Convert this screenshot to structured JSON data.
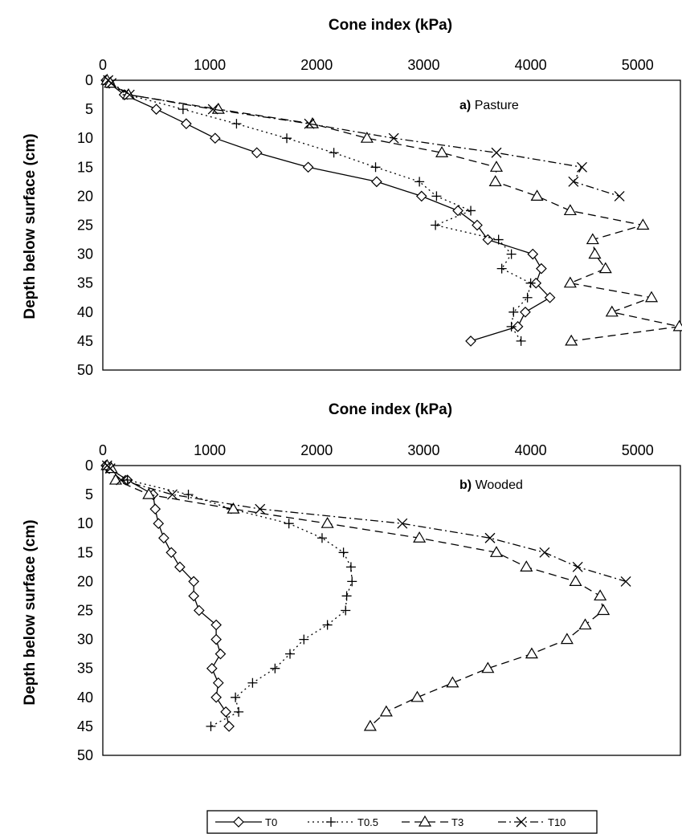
{
  "legend": [
    "T0",
    "T0.5",
    "T3",
    "T10"
  ],
  "chart_data": [
    {
      "type": "line",
      "panel_tag": "a)",
      "panel_name": "Pasture",
      "xlabel": "Cone index (kPa)",
      "ylabel": "Depth below surface (cm)",
      "xlim": [
        0,
        5400
      ],
      "ylim": [
        0,
        50
      ],
      "x_ticks": [
        0,
        1000,
        2000,
        3000,
        4000,
        5000
      ],
      "y_ticks": [
        0,
        5,
        10,
        15,
        20,
        25,
        30,
        35,
        40,
        45,
        50
      ],
      "legend_position": "bottom",
      "series": [
        {
          "name": "T0",
          "points": [
            [
              30,
              0
            ],
            [
              60,
              0.5
            ],
            [
              200,
              2.5
            ],
            [
              500,
              5
            ],
            [
              780,
              7.5
            ],
            [
              1050,
              10
            ],
            [
              1440,
              12.5
            ],
            [
              1920,
              15
            ],
            [
              2560,
              17.5
            ],
            [
              2980,
              20
            ],
            [
              3320,
              22.5
            ],
            [
              3500,
              25
            ],
            [
              3600,
              27.5
            ],
            [
              4020,
              30
            ],
            [
              4100,
              32.5
            ],
            [
              4050,
              35
            ],
            [
              4180,
              37.5
            ],
            [
              3950,
              40
            ],
            [
              3880,
              42.5
            ],
            [
              3440,
              45
            ]
          ]
        },
        {
          "name": "T0.5",
          "points": [
            [
              40,
              0
            ],
            [
              60,
              0.5
            ],
            [
              230,
              2.5
            ],
            [
              750,
              5
            ],
            [
              1250,
              7.5
            ],
            [
              1720,
              10
            ],
            [
              2160,
              12.5
            ],
            [
              2550,
              15
            ],
            [
              2960,
              17.5
            ],
            [
              3120,
              20
            ],
            [
              3440,
              22.5
            ],
            [
              3110,
              25
            ],
            [
              3700,
              27.5
            ],
            [
              3820,
              30
            ],
            [
              3730,
              32.5
            ],
            [
              4000,
              35
            ],
            [
              3970,
              37.5
            ],
            [
              3840,
              40
            ],
            [
              3820,
              42.5
            ],
            [
              3910,
              45
            ]
          ]
        },
        {
          "name": "T3",
          "points": [
            [
              40,
              0
            ],
            [
              70,
              0.5
            ],
            [
              240,
              2.5
            ],
            [
              1080,
              5
            ],
            [
              1960,
              7.5
            ],
            [
              2470,
              10
            ],
            [
              3170,
              12.5
            ],
            [
              3680,
              15
            ],
            [
              3670,
              17.5
            ],
            [
              4060,
              20
            ],
            [
              4370,
              22.5
            ],
            [
              5050,
              25
            ],
            [
              4580,
              27.5
            ],
            [
              4600,
              30
            ],
            [
              4700,
              32.5
            ],
            [
              4370,
              35
            ],
            [
              5130,
              37.5
            ],
            [
              4760,
              40
            ],
            [
              5390,
              42.5
            ],
            [
              4380,
              45
            ]
          ]
        },
        {
          "name": "T10",
          "points": [
            [
              50,
              0
            ],
            [
              80,
              0.5
            ],
            [
              250,
              2.5
            ],
            [
              1030,
              5
            ],
            [
              1930,
              7.5
            ],
            [
              2720,
              10
            ],
            [
              3680,
              12.5
            ],
            [
              4480,
              15
            ],
            [
              4400,
              17.5
            ],
            [
              4830,
              20
            ]
          ]
        }
      ]
    },
    {
      "type": "line",
      "panel_tag": "b)",
      "panel_name": "Wooded",
      "xlabel": "Cone index (kPa)",
      "ylabel": "Depth below surface (cm)",
      "xlim": [
        0,
        5400
      ],
      "ylim": [
        0,
        50
      ],
      "x_ticks": [
        0,
        1000,
        2000,
        3000,
        4000,
        5000
      ],
      "y_ticks": [
        0,
        5,
        10,
        15,
        20,
        25,
        30,
        35,
        40,
        45,
        50
      ],
      "legend_position": "bottom",
      "series": [
        {
          "name": "T0",
          "points": [
            [
              30,
              0
            ],
            [
              60,
              0.5
            ],
            [
              230,
              2.5
            ],
            [
              470,
              5
            ],
            [
              490,
              7.5
            ],
            [
              520,
              10
            ],
            [
              570,
              12.5
            ],
            [
              640,
              15
            ],
            [
              720,
              17.5
            ],
            [
              850,
              20
            ],
            [
              850,
              22.5
            ],
            [
              900,
              25
            ],
            [
              1060,
              27.5
            ],
            [
              1060,
              30
            ],
            [
              1100,
              32.5
            ],
            [
              1020,
              35
            ],
            [
              1080,
              37.5
            ],
            [
              1060,
              40
            ],
            [
              1150,
              42.5
            ],
            [
              1180,
              45
            ]
          ]
        },
        {
          "name": "T0.5",
          "points": [
            [
              30,
              0
            ],
            [
              60,
              0.5
            ],
            [
              230,
              2.5
            ],
            [
              800,
              5
            ],
            [
              1200,
              7.5
            ],
            [
              1740,
              10
            ],
            [
              2050,
              12.5
            ],
            [
              2250,
              15
            ],
            [
              2320,
              17.5
            ],
            [
              2330,
              20
            ],
            [
              2280,
              22.5
            ],
            [
              2270,
              25
            ],
            [
              2100,
              27.5
            ],
            [
              1880,
              30
            ],
            [
              1750,
              32.5
            ],
            [
              1610,
              35
            ],
            [
              1400,
              37.5
            ],
            [
              1240,
              40
            ],
            [
              1270,
              42.5
            ],
            [
              1010,
              45
            ]
          ]
        },
        {
          "name": "T3",
          "points": [
            [
              40,
              0
            ],
            [
              80,
              0.5
            ],
            [
              120,
              2.5
            ],
            [
              430,
              5
            ],
            [
              1220,
              7.5
            ],
            [
              2100,
              10
            ],
            [
              2960,
              12.5
            ],
            [
              3680,
              15
            ],
            [
              3960,
              17.5
            ],
            [
              4420,
              20
            ],
            [
              4650,
              22.5
            ],
            [
              4680,
              25
            ],
            [
              4510,
              27.5
            ],
            [
              4340,
              30
            ],
            [
              4010,
              32.5
            ],
            [
              3600,
              35
            ],
            [
              3270,
              37.5
            ],
            [
              2940,
              40
            ],
            [
              2650,
              42.5
            ],
            [
              2500,
              45
            ]
          ]
        },
        {
          "name": "T10",
          "points": [
            [
              40,
              0
            ],
            [
              70,
              0.5
            ],
            [
              170,
              2.5
            ],
            [
              650,
              5
            ],
            [
              1470,
              7.5
            ],
            [
              2800,
              10
            ],
            [
              3620,
              12.5
            ],
            [
              4130,
              15
            ],
            [
              4440,
              17.5
            ],
            [
              4890,
              20
            ]
          ]
        }
      ]
    }
  ]
}
